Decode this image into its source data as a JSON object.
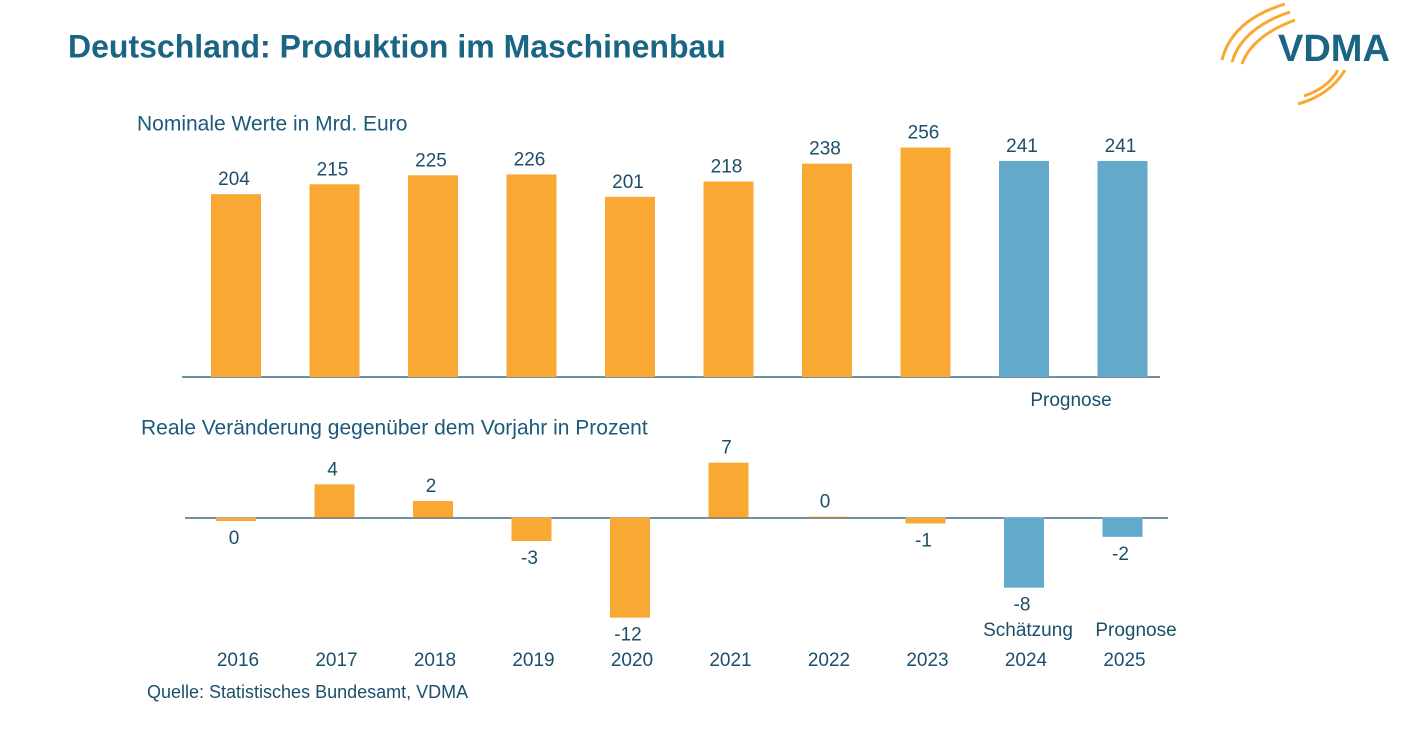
{
  "title": "Deutschland: Produktion im Maschinenbau",
  "logo": "VDMA",
  "source": "Quelle: Statistisches Bundesamt, VDMA",
  "chart_data": [
    {
      "type": "bar",
      "title": "Nominale Werte in Mrd. Euro",
      "values": [
        204,
        215,
        225,
        226,
        201,
        218,
        238,
        256,
        241,
        241
      ],
      "colors": [
        "#f9a933",
        "#f9a933",
        "#f9a933",
        "#f9a933",
        "#f9a933",
        "#f9a933",
        "#f9a933",
        "#f9a933",
        "#63a9c9",
        "#63a9c9"
      ],
      "ylim": [
        0,
        280
      ],
      "annotations": [
        "Prognose"
      ]
    },
    {
      "type": "bar",
      "title": "Reale Veränderung gegenüber dem Vorjahr in Prozent",
      "categories": [
        "2016",
        "2017",
        "2018",
        "2019",
        "2020",
        "2021",
        "2022",
        "2023",
        "2024",
        "2025"
      ],
      "values": [
        -0.4,
        4,
        2,
        -2.8,
        -12,
        6.6,
        0,
        -0.7,
        -8.4,
        -2.3
      ],
      "value_labels": [
        "0",
        "4",
        "2",
        "-3",
        "-12",
        "7",
        "0",
        "-1",
        "-8",
        "-2"
      ],
      "colors": [
        "#f9a933",
        "#f9a933",
        "#f9a933",
        "#f9a933",
        "#f9a933",
        "#f9a933",
        "#f9a933",
        "#f9a933",
        "#63a9c9",
        "#63a9c9"
      ],
      "ylim": [
        -13,
        8
      ],
      "annotations": [
        "Schätzung",
        "Prognose"
      ]
    }
  ]
}
